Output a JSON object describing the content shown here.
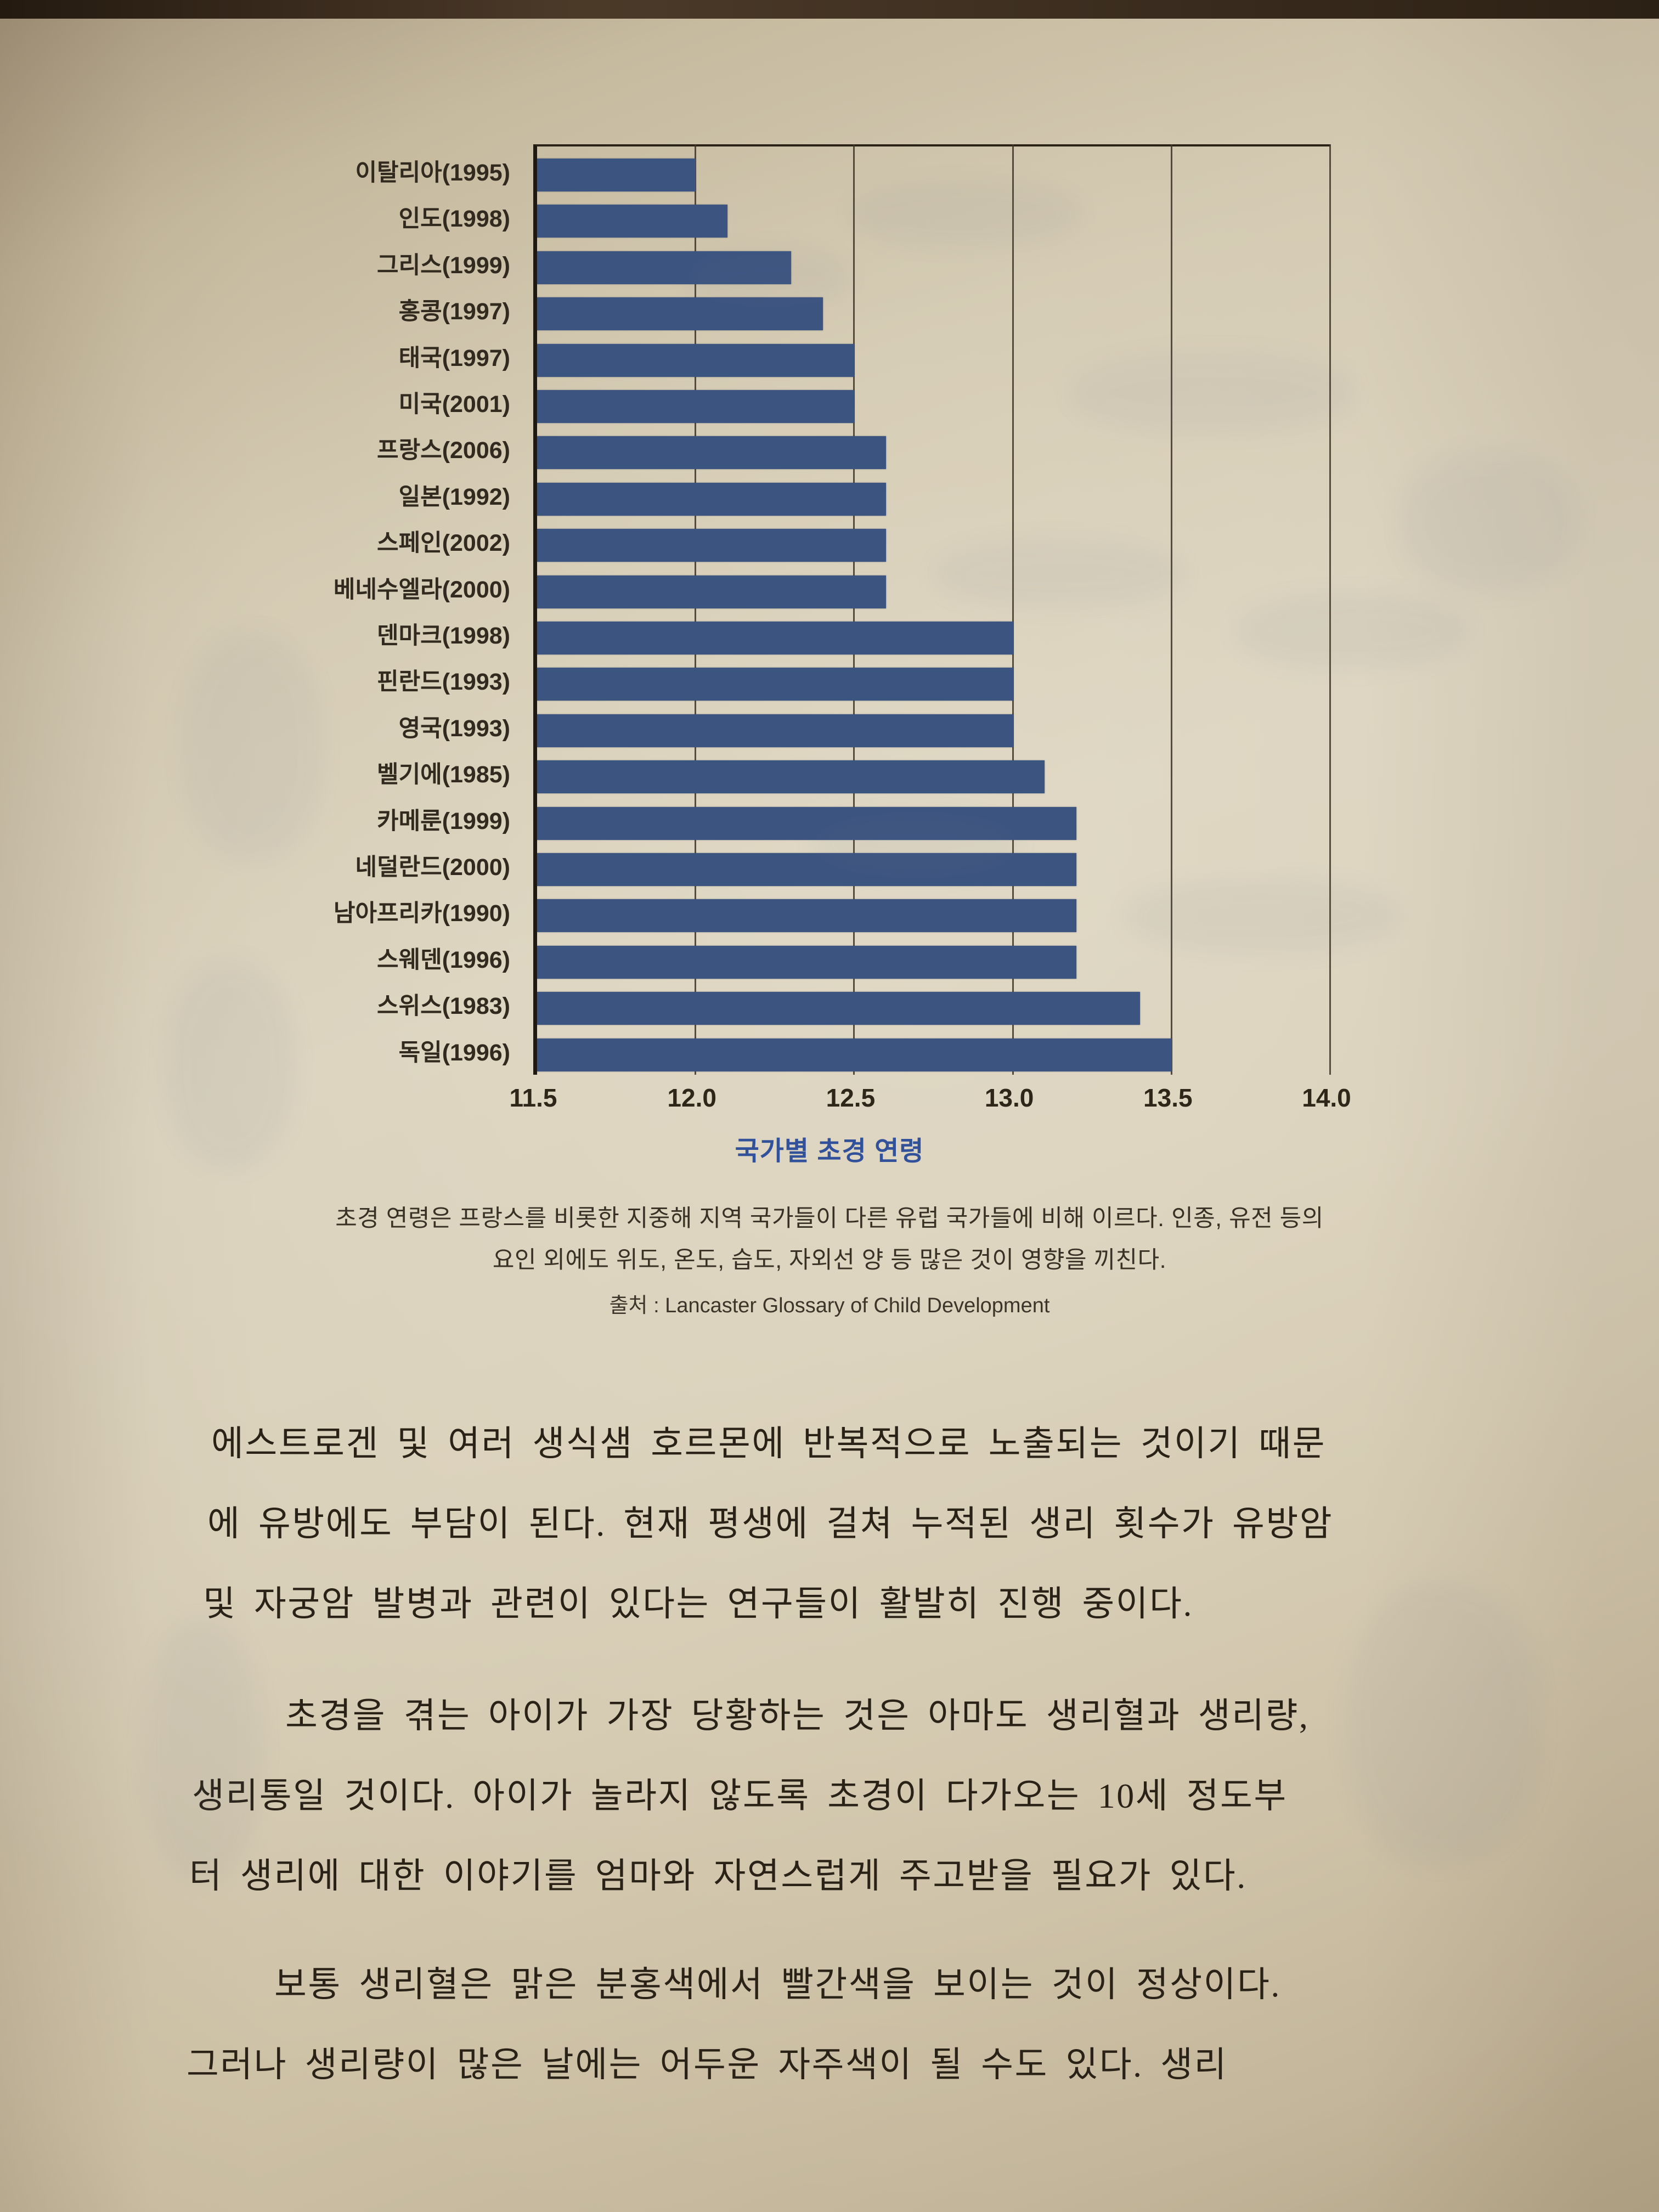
{
  "chart_data": {
    "type": "bar",
    "orientation": "horizontal",
    "title": "국가별 초경 연령",
    "categories": [
      "이탈리아(1995)",
      "인도(1998)",
      "그리스(1999)",
      "홍콩(1997)",
      "태국(1997)",
      "미국(2001)",
      "프랑스(2006)",
      "일본(1992)",
      "스페인(2002)",
      "베네수엘라(2000)",
      "덴마크(1998)",
      "핀란드(1993)",
      "영국(1993)",
      "벨기에(1985)",
      "카메룬(1999)",
      "네덜란드(2000)",
      "남아프리카(1990)",
      "스웨덴(1996)",
      "스위스(1983)",
      "독일(1996)"
    ],
    "values": [
      12.0,
      12.1,
      12.3,
      12.4,
      12.5,
      12.5,
      12.6,
      12.6,
      12.6,
      12.6,
      13.0,
      13.0,
      13.0,
      13.1,
      13.2,
      13.2,
      13.2,
      13.2,
      13.4,
      13.5
    ],
    "xlim": [
      11.5,
      14.0
    ],
    "x_ticks": [
      11.5,
      12.0,
      12.5,
      13.0,
      13.5,
      14.0
    ],
    "tick_labels": [
      "11.5",
      "12.0",
      "12.5",
      "13.0",
      "13.5",
      "14.0"
    ],
    "grid": true,
    "legend": "none",
    "bar_color": "#3b5480"
  },
  "chart": {
    "title": "국가별 초경 연령",
    "caption_lines": [
      "초경 연령은 프랑스를 비롯한 지중해 지역 국가들이 다른 유럽 국가들에 비해 이르다. 인종, 유전 등의",
      "요인 외에도 위도, 온도, 습도, 자외선 양 등 많은 것이 영향을 끼친다."
    ],
    "source": "출처 : Lancaster Glossary of Child Development"
  },
  "body_text": {
    "lines": [
      "에스트로겐 및 여러 생식샘 호르몬에 반복적으로 노출되는 것이기 때문",
      "에 유방에도 부담이 된다. 현재 평생에 걸쳐 누적된 생리 횟수가 유방암",
      "및 자궁암 발병과 관련이 있다는 연구들이 활발히 진행 중이다.",
      "초경을 겪는 아이가 가장 당황하는 것은 아마도 생리혈과 생리량,",
      "생리통일 것이다. 아이가 놀라지 않도록 초경이 다가오는 10세 정도부",
      "터 생리에 대한 이야기를 엄마와 자연스럽게 주고받을 필요가 있다.",
      "보통 생리혈은 맑은 분홍색에서 빨간색을 보이는 것이 정상이다.",
      "그러나 생리량이 많은 날에는 어두운 자주색이 될 수도 있다. 생리"
    ]
  }
}
